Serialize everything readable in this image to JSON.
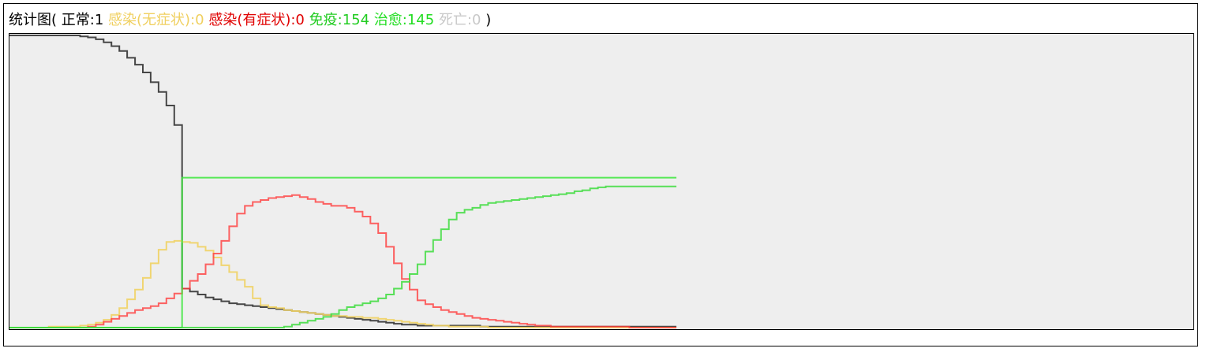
{
  "header": {
    "prefix": "统计图(",
    "normal": "正常:1",
    "infected_asym": "感染(无症状):0",
    "infected_sym": "感染(有症状):0",
    "immune": "免疫:154",
    "cured": "治愈:145",
    "dead": "死亡:0",
    "suffix": ")"
  },
  "colors": {
    "normal": "#000000",
    "infected_asym": "#f0d060",
    "infected_sym": "#ff0000",
    "immune": "#00cc00",
    "cured": "#00dd00",
    "dead": "#c0c0c0",
    "plot_bg": "#eeeeee"
  },
  "chart_data": {
    "type": "line",
    "step": true,
    "ylim": [
      0,
      300
    ],
    "xlim": [
      0,
      300
    ],
    "x": [
      0,
      5,
      10,
      15,
      18,
      20,
      22,
      24,
      26,
      28,
      30,
      32,
      34,
      36,
      38,
      40,
      42,
      44,
      46,
      48,
      50,
      52,
      54,
      56,
      58,
      60,
      62,
      64,
      66,
      68,
      70,
      72,
      74,
      76,
      78,
      80,
      82,
      84,
      86,
      88,
      90,
      92,
      94,
      96,
      98,
      100,
      102,
      104,
      106,
      108,
      110,
      112,
      114,
      116,
      118,
      120,
      122,
      124,
      126,
      128,
      130,
      132,
      134,
      136,
      138,
      140,
      142,
      144,
      146,
      148,
      150,
      152,
      154,
      156,
      158,
      160,
      162,
      164,
      166,
      168,
      170
    ],
    "series": [
      {
        "key": "normal",
        "values": [
          300,
          300,
          300,
          300,
          299,
          298,
          296,
          293,
          289,
          284,
          277,
          270,
          262,
          252,
          242,
          228,
          208,
          40,
          37,
          34,
          31,
          29,
          27,
          25,
          24,
          23,
          22,
          21,
          20,
          19,
          18,
          17,
          16,
          15,
          14,
          13,
          12,
          11,
          10,
          9,
          8,
          7,
          6,
          5,
          4,
          3,
          3,
          2,
          2,
          2,
          2,
          2,
          2,
          2,
          2,
          1,
          1,
          1,
          1,
          1,
          1,
          1,
          1,
          1,
          1,
          1,
          1,
          1,
          1,
          1,
          1,
          1,
          1,
          1,
          1,
          1,
          1,
          1,
          1,
          1,
          1
        ]
      },
      {
        "key": "infected_asym",
        "values": [
          0,
          0,
          1,
          1,
          2,
          3,
          5,
          8,
          13,
          20,
          29,
          39,
          51,
          66,
          80,
          88,
          89,
          88,
          87,
          83,
          79,
          72,
          64,
          57,
          49,
          42,
          30,
          23,
          21,
          20,
          18,
          17,
          16,
          15,
          14,
          13,
          12,
          12,
          11,
          11,
          10,
          10,
          9,
          8,
          7,
          6,
          5,
          4,
          3,
          2,
          2,
          1,
          1,
          1,
          1,
          1,
          0,
          0,
          0,
          0,
          0,
          0,
          0,
          0,
          0,
          0,
          0,
          0,
          0,
          0,
          0,
          0,
          0,
          0,
          0,
          0,
          0,
          0,
          0,
          0,
          0
        ]
      },
      {
        "key": "infected_sym",
        "values": [
          0,
          0,
          0,
          0,
          0,
          1,
          3,
          6,
          9,
          12,
          15,
          18,
          20,
          22,
          25,
          30,
          35,
          40,
          48,
          55,
          65,
          76,
          89,
          104,
          117,
          125,
          129,
          131,
          133,
          134,
          135,
          136,
          134,
          132,
          129,
          127,
          125,
          125,
          123,
          119,
          114,
          107,
          97,
          83,
          66,
          50,
          39,
          28,
          24,
          21,
          18,
          16,
          14,
          12,
          10,
          9,
          8,
          7,
          6,
          5,
          4,
          3,
          2,
          2,
          1,
          1,
          1,
          1,
          1,
          1,
          1,
          1,
          1,
          1,
          0,
          0,
          0,
          0,
          0,
          0,
          0
        ]
      },
      {
        "key": "immune",
        "values": [
          0,
          0,
          0,
          0,
          0,
          0,
          0,
          0,
          0,
          0,
          0,
          0,
          0,
          0,
          0,
          0,
          0,
          154,
          154,
          154,
          154,
          154,
          154,
          154,
          154,
          154,
          154,
          154,
          154,
          154,
          154,
          154,
          154,
          154,
          154,
          154,
          154,
          154,
          154,
          154,
          154,
          154,
          154,
          154,
          154,
          154,
          154,
          154,
          154,
          154,
          154,
          154,
          154,
          154,
          154,
          154,
          154,
          154,
          154,
          154,
          154,
          154,
          154,
          154,
          154,
          154,
          154,
          154,
          154,
          154,
          154,
          154,
          154,
          154,
          154,
          154,
          154,
          154,
          154,
          154,
          154
        ]
      },
      {
        "key": "cured",
        "values": [
          0,
          0,
          0,
          0,
          0,
          0,
          0,
          0,
          0,
          0,
          0,
          0,
          0,
          0,
          0,
          0,
          0,
          0,
          0,
          0,
          0,
          0,
          0,
          0,
          0,
          0,
          0,
          0,
          0,
          0,
          1,
          3,
          5,
          7,
          9,
          11,
          14,
          18,
          21,
          23,
          25,
          27,
          30,
          34,
          40,
          47,
          55,
          65,
          78,
          90,
          101,
          111,
          118,
          121,
          123,
          126,
          128,
          129,
          130,
          131,
          132,
          133,
          134,
          135,
          136,
          137,
          138,
          140,
          141,
          143,
          144,
          145,
          145,
          145,
          145,
          145,
          145,
          145,
          145,
          145,
          145
        ]
      }
    ]
  }
}
